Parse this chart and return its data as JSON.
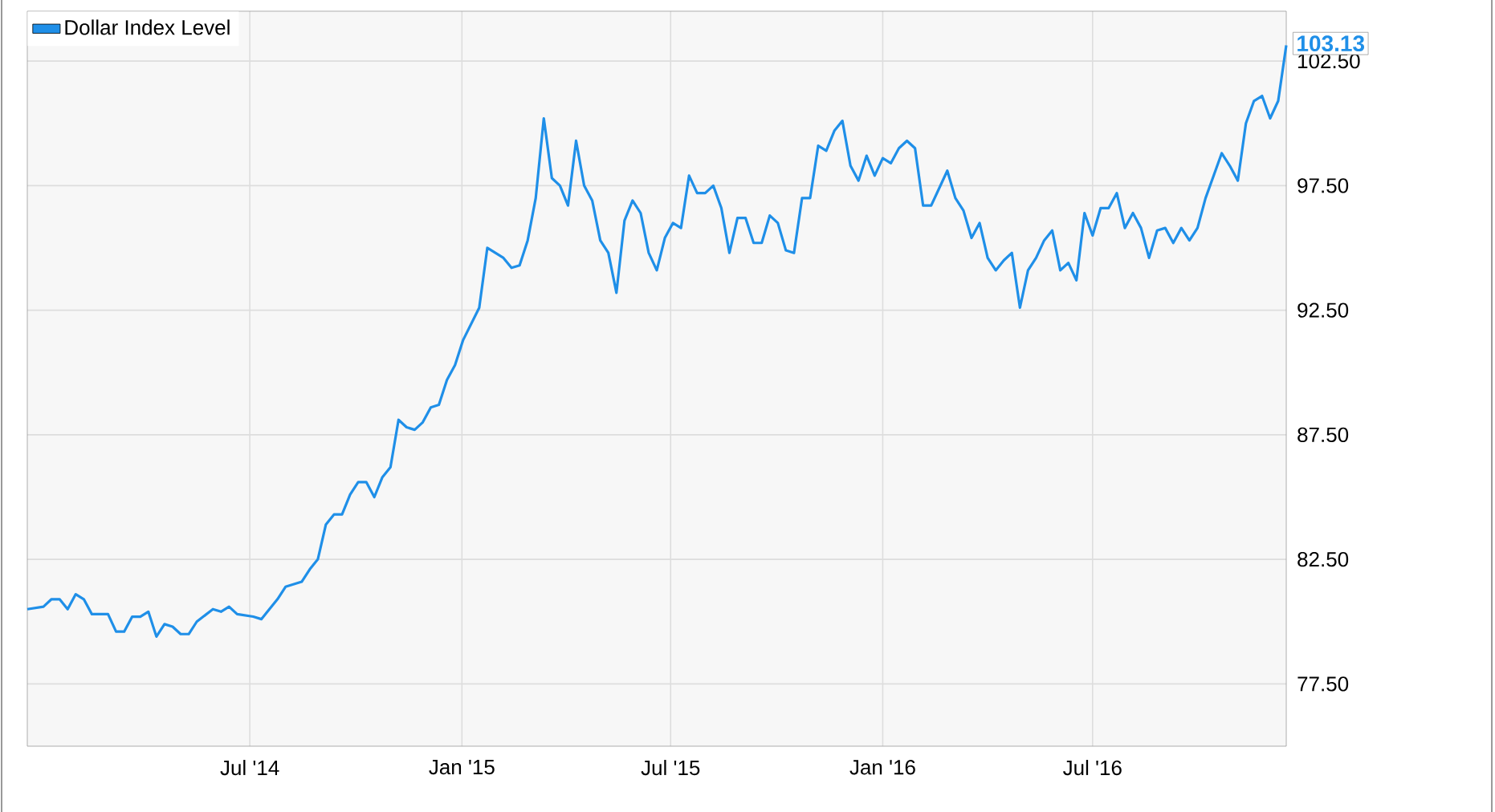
{
  "chart_data": {
    "type": "line",
    "x": [
      "2013-12-20",
      "2014-01-03",
      "2014-01-10",
      "2014-01-17",
      "2014-01-24",
      "2014-01-31",
      "2014-02-07",
      "2014-02-14",
      "2014-02-28",
      "2014-03-07",
      "2014-03-14",
      "2014-03-21",
      "2014-03-28",
      "2014-04-04",
      "2014-04-11",
      "2014-04-18",
      "2014-04-25",
      "2014-05-02",
      "2014-05-09",
      "2014-05-16",
      "2014-05-30",
      "2014-06-06",
      "2014-06-13",
      "2014-06-20",
      "2014-07-04",
      "2014-07-11",
      "2014-07-18",
      "2014-07-25",
      "2014-08-01",
      "2014-08-15",
      "2014-08-22",
      "2014-08-29",
      "2014-09-05",
      "2014-09-12",
      "2014-09-19",
      "2014-09-26",
      "2014-10-03",
      "2014-10-10",
      "2014-10-17",
      "2014-10-24",
      "2014-10-31",
      "2014-11-07",
      "2014-11-14",
      "2014-11-21",
      "2014-11-28",
      "2014-12-05",
      "2014-12-12",
      "2014-12-19",
      "2014-12-26",
      "2015-01-02",
      "2015-01-16",
      "2015-01-23",
      "2015-01-30",
      "2015-02-06",
      "2015-02-13",
      "2015-02-20",
      "2015-02-27",
      "2015-03-06",
      "2015-03-13",
      "2015-03-20",
      "2015-03-27",
      "2015-04-03",
      "2015-04-10",
      "2015-04-17",
      "2015-04-24",
      "2015-05-01",
      "2015-05-08",
      "2015-05-15",
      "2015-05-22",
      "2015-05-29",
      "2015-06-05",
      "2015-06-12",
      "2015-06-19",
      "2015-06-26",
      "2015-07-03",
      "2015-07-10",
      "2015-07-17",
      "2015-07-24",
      "2015-07-31",
      "2015-08-07",
      "2015-08-14",
      "2015-08-21",
      "2015-08-28",
      "2015-09-04",
      "2015-09-11",
      "2015-09-18",
      "2015-09-25",
      "2015-10-02",
      "2015-10-09",
      "2015-10-16",
      "2015-10-23",
      "2015-10-30",
      "2015-11-06",
      "2015-11-13",
      "2015-11-20",
      "2015-11-27",
      "2015-12-04",
      "2015-12-11",
      "2015-12-18",
      "2015-12-25",
      "2016-01-01",
      "2016-01-08",
      "2016-01-15",
      "2016-01-22",
      "2016-01-29",
      "2016-02-05",
      "2016-02-12",
      "2016-02-19",
      "2016-02-26",
      "2016-03-04",
      "2016-03-11",
      "2016-03-18",
      "2016-03-25",
      "2016-04-01",
      "2016-04-08",
      "2016-04-15",
      "2016-04-22",
      "2016-04-29",
      "2016-05-06",
      "2016-05-13",
      "2016-05-20",
      "2016-05-27",
      "2016-06-03",
      "2016-06-10",
      "2016-06-17",
      "2016-06-24",
      "2016-07-01",
      "2016-07-08",
      "2016-07-15",
      "2016-07-22",
      "2016-07-29",
      "2016-08-05",
      "2016-08-12",
      "2016-08-19",
      "2016-08-26",
      "2016-09-02",
      "2016-09-09",
      "2016-09-16",
      "2016-09-23",
      "2016-09-30",
      "2016-10-07",
      "2016-10-14",
      "2016-10-21",
      "2016-10-28",
      "2016-11-04",
      "2016-11-11",
      "2016-11-18",
      "2016-11-25",
      "2016-12-02",
      "2016-12-09",
      "2016-12-16"
    ],
    "series": [
      {
        "name": "Dollar Index Level",
        "color": "#1f8fe8",
        "values": [
          80.5,
          80.6,
          80.9,
          80.9,
          80.5,
          81.1,
          80.9,
          80.3,
          80.3,
          79.6,
          79.6,
          80.2,
          80.2,
          80.4,
          79.4,
          79.9,
          79.8,
          79.5,
          79.5,
          80.0,
          80.5,
          80.4,
          80.6,
          80.3,
          80.2,
          80.1,
          80.5,
          80.9,
          81.4,
          81.6,
          82.1,
          82.5,
          83.9,
          84.3,
          84.3,
          85.1,
          85.6,
          85.6,
          85.0,
          85.8,
          86.2,
          88.1,
          87.8,
          87.7,
          88.0,
          88.6,
          88.7,
          89.7,
          90.3,
          91.3,
          92.6,
          95.0,
          94.8,
          94.6,
          94.2,
          94.3,
          95.3,
          97.0,
          100.2,
          97.8,
          97.5,
          96.7,
          99.3,
          97.5,
          96.9,
          95.3,
          94.8,
          93.2,
          96.1,
          96.9,
          96.4,
          94.8,
          94.1,
          95.4,
          96.0,
          95.8,
          97.9,
          97.2,
          97.2,
          97.5,
          96.6,
          94.8,
          96.2,
          96.2,
          95.2,
          95.2,
          96.3,
          96.0,
          94.9,
          94.8,
          97.0,
          97.0,
          99.1,
          98.9,
          99.7,
          100.1,
          98.3,
          97.7,
          98.7,
          97.9,
          98.6,
          98.4,
          99.0,
          99.3,
          99.0,
          96.7,
          96.7,
          97.4,
          98.1,
          97.0,
          96.5,
          95.4,
          96.0,
          94.6,
          94.1,
          94.5,
          94.8,
          92.6,
          94.1,
          94.6,
          95.3,
          95.7,
          94.1,
          94.4,
          93.7,
          96.4,
          95.5,
          96.6,
          96.6,
          97.2,
          95.8,
          96.4,
          95.8,
          94.6,
          95.7,
          95.8,
          95.2,
          95.8,
          95.3,
          95.8,
          97.0,
          97.9,
          98.8,
          98.3,
          97.7,
          100.0,
          100.9,
          101.1,
          100.2,
          100.9,
          103.13
        ]
      }
    ],
    "xlim": [
      "2013-12-20",
      "2016-12-16"
    ],
    "ylim": [
      75,
      104.5
    ],
    "xticks": [
      {
        "value": "2014-07-01",
        "label": "Jul '14"
      },
      {
        "value": "2015-01-01",
        "label": "Jan '15"
      },
      {
        "value": "2015-07-01",
        "label": "Jul '15"
      },
      {
        "value": "2016-01-01",
        "label": "Jan '16"
      },
      {
        "value": "2016-07-01",
        "label": "Jul '16"
      }
    ],
    "yticks": [
      {
        "value": 77.5,
        "label": "77.50"
      },
      {
        "value": 82.5,
        "label": "82.50"
      },
      {
        "value": 87.5,
        "label": "87.50"
      },
      {
        "value": 92.5,
        "label": "92.50"
      },
      {
        "value": 97.5,
        "label": "97.50"
      },
      {
        "value": 102.5,
        "label": "102.50"
      }
    ],
    "annotations": [
      {
        "text": "103.13",
        "x": "2016-12-16",
        "y": 103.13
      }
    ],
    "grid": true,
    "legend": "top left",
    "marker": "none",
    "line_style": "solid"
  }
}
